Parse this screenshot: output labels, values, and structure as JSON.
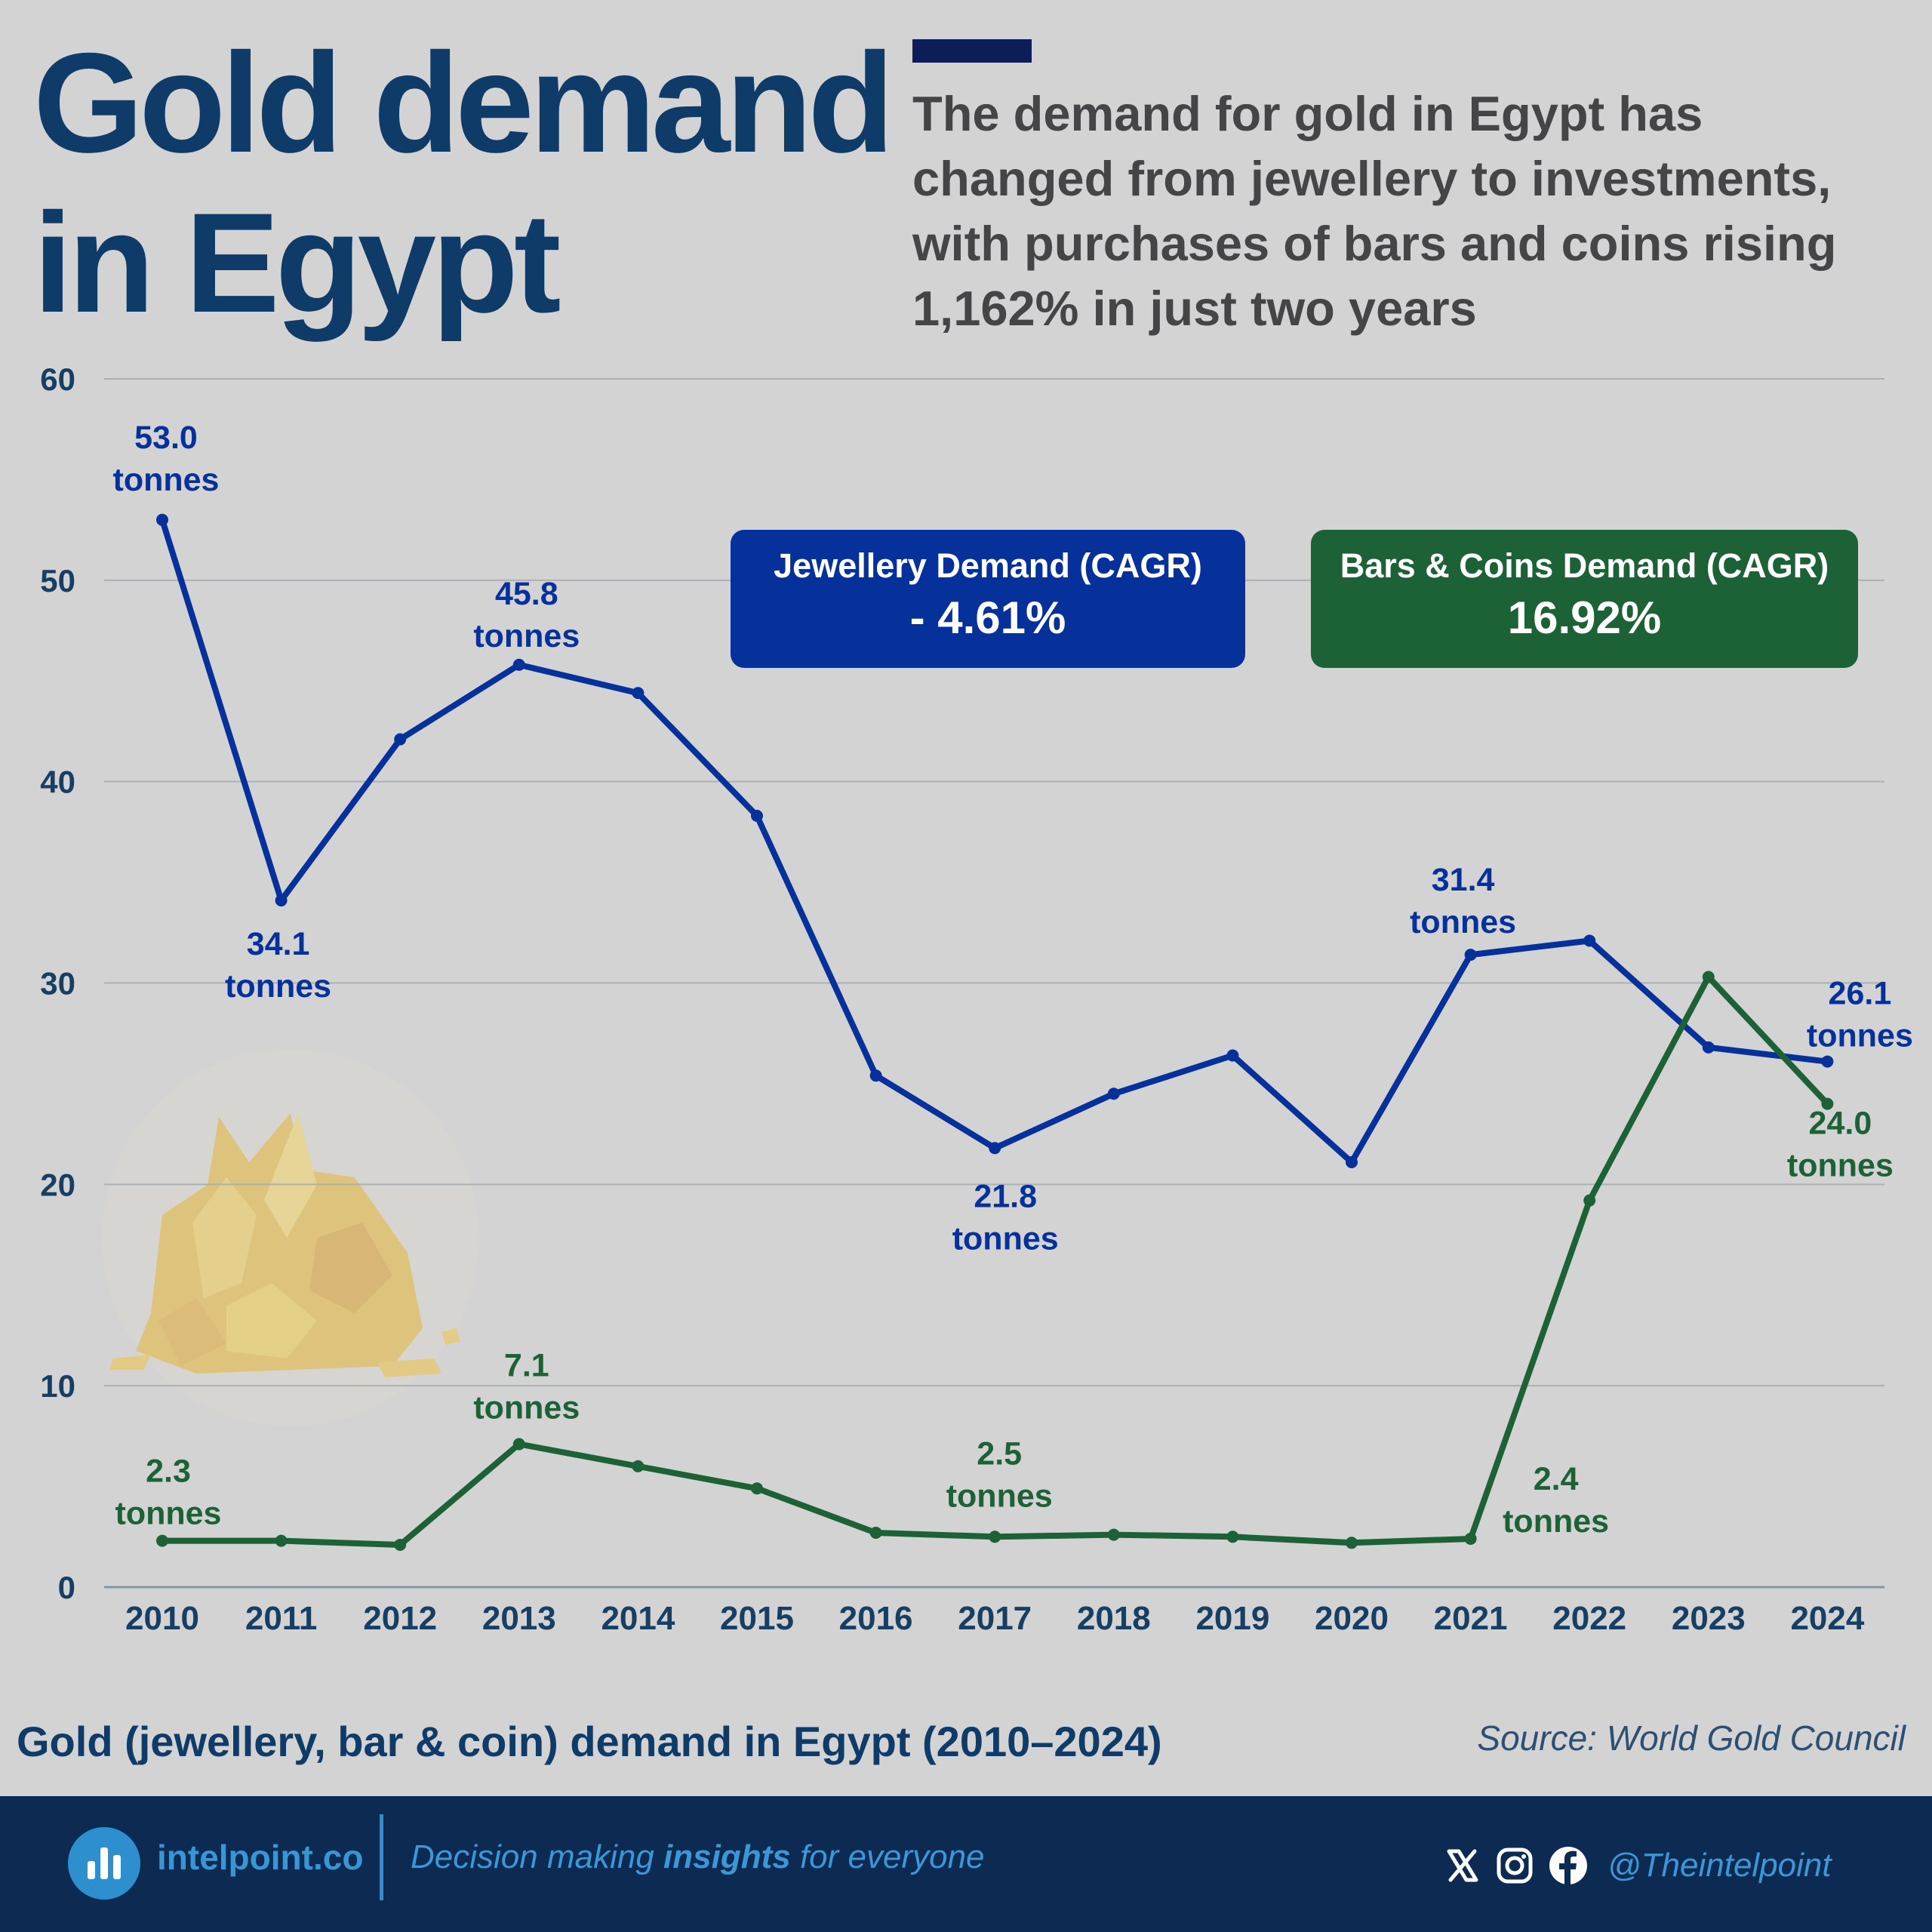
{
  "title_line1": "Gold demand",
  "title_line2": "in Egypt",
  "subtitle": "The demand for gold in Egypt has changed from jewellery to investments, with purchases of bars and coins rising 1,162% in just two years",
  "caption": "Gold (jewellery, bar & coin) demand in Egypt (2010–2024)",
  "source": "Source: World Gold Council",
  "colors": {
    "jewellery": "#06319a",
    "bars_coins": "#1d6236",
    "title": "#0e3b68",
    "footer_bg": "#0c2a52",
    "accent": "#2e8fce"
  },
  "chart_data": {
    "type": "line",
    "x": [
      "2010",
      "2011",
      "2012",
      "2013",
      "2014",
      "2015",
      "2016",
      "2017",
      "2018",
      "2019",
      "2020",
      "2021",
      "2022",
      "2023",
      "2024"
    ],
    "ylim": [
      0,
      60
    ],
    "yticks": [
      "0",
      "10",
      "20",
      "30",
      "40",
      "50",
      "60"
    ],
    "grid": true,
    "series": [
      {
        "key": "jewellery",
        "values": [
          53.0,
          34.1,
          42.1,
          45.8,
          44.4,
          38.3,
          25.4,
          21.8,
          24.5,
          26.4,
          21.1,
          31.4,
          32.1,
          26.8,
          26.1
        ]
      },
      {
        "key": "bars_coins",
        "values": [
          2.3,
          2.3,
          2.1,
          7.1,
          6.0,
          4.9,
          2.7,
          2.5,
          2.6,
          2.5,
          2.2,
          2.4,
          19.2,
          30.3,
          24.0
        ]
      }
    ],
    "annotations": [
      {
        "series": "jewellery",
        "index": 0,
        "value": "53.0",
        "unit": "tonnes"
      },
      {
        "series": "jewellery",
        "index": 1,
        "value": "34.1",
        "unit": "tonnes"
      },
      {
        "series": "jewellery",
        "index": 3,
        "value": "45.8",
        "unit": "tonnes"
      },
      {
        "series": "jewellery",
        "index": 7,
        "value": "21.8",
        "unit": "tonnes"
      },
      {
        "series": "jewellery",
        "index": 11,
        "value": "31.4",
        "unit": "tonnes"
      },
      {
        "series": "jewellery",
        "index": 14,
        "value": "26.1",
        "unit": "tonnes"
      },
      {
        "series": "bars_coins",
        "index": 0,
        "value": "2.3",
        "unit": "tonnes"
      },
      {
        "series": "bars_coins",
        "index": 3,
        "value": "7.1",
        "unit": "tonnes"
      },
      {
        "series": "bars_coins",
        "index": 7,
        "value": "2.5",
        "unit": "tonnes"
      },
      {
        "series": "bars_coins",
        "index": 11,
        "value": "2.4",
        "unit": "tonnes"
      },
      {
        "series": "bars_coins",
        "index": 14,
        "value": "24.0",
        "unit": "tonnes"
      }
    ],
    "callouts": [
      {
        "series": "jewellery",
        "label": "Jewellery Demand (CAGR)",
        "value": "- 4.61%"
      },
      {
        "series": "bars_coins",
        "label": "Bars & Coins Demand (CAGR)",
        "value": "16.92%"
      }
    ]
  },
  "footer": {
    "brand": "intelpoint.co",
    "tagline_pre": "Decision making ",
    "tagline_bold": "insights",
    "tagline_post": " for everyone",
    "handle": "@Theintelpoint",
    "icons": [
      "x-icon",
      "instagram-icon",
      "facebook-icon"
    ]
  }
}
